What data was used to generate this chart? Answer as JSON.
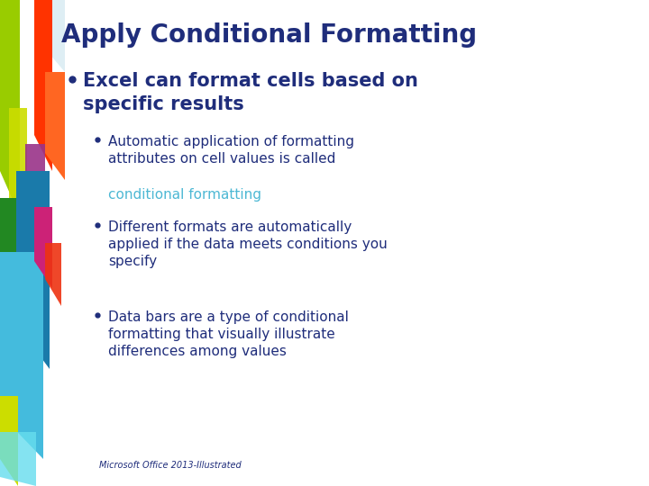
{
  "background_color": "#ffffff",
  "title": "Apply Conditional Formatting",
  "title_color": "#1F2D7B",
  "title_fontsize": 20,
  "bullet1_text": "Excel can format cells based on\nspecific results",
  "bullet1_color": "#1F2D7B",
  "bullet1_fontsize": 15,
  "sub_bullet1_text": "Automatic application of formatting\nattributes on cell values is called\n",
  "sub_bullet1_highlight": "conditional formatting",
  "sub_bullet1_color": "#1F2D7B",
  "sub_bullet1_highlight_color": "#4DB8D4",
  "sub_bullet2_text": "Different formats are automatically\napplied if the data meets conditions you\nspecify",
  "sub_bullet2_color": "#1F2D7B",
  "sub_bullet3_text": "Data bars are a type of conditional\nformatting that visually illustrate\ndifferences among values",
  "sub_bullet3_color": "#1F2D7B",
  "sub_fontsize": 11,
  "footer_text": "Microsoft Office 2013-Illustrated",
  "footer_color": "#1F2D7B",
  "footer_fontsize": 7,
  "dark_navy": "#1F2D7B",
  "highlight_blue": "#4DB8D4"
}
